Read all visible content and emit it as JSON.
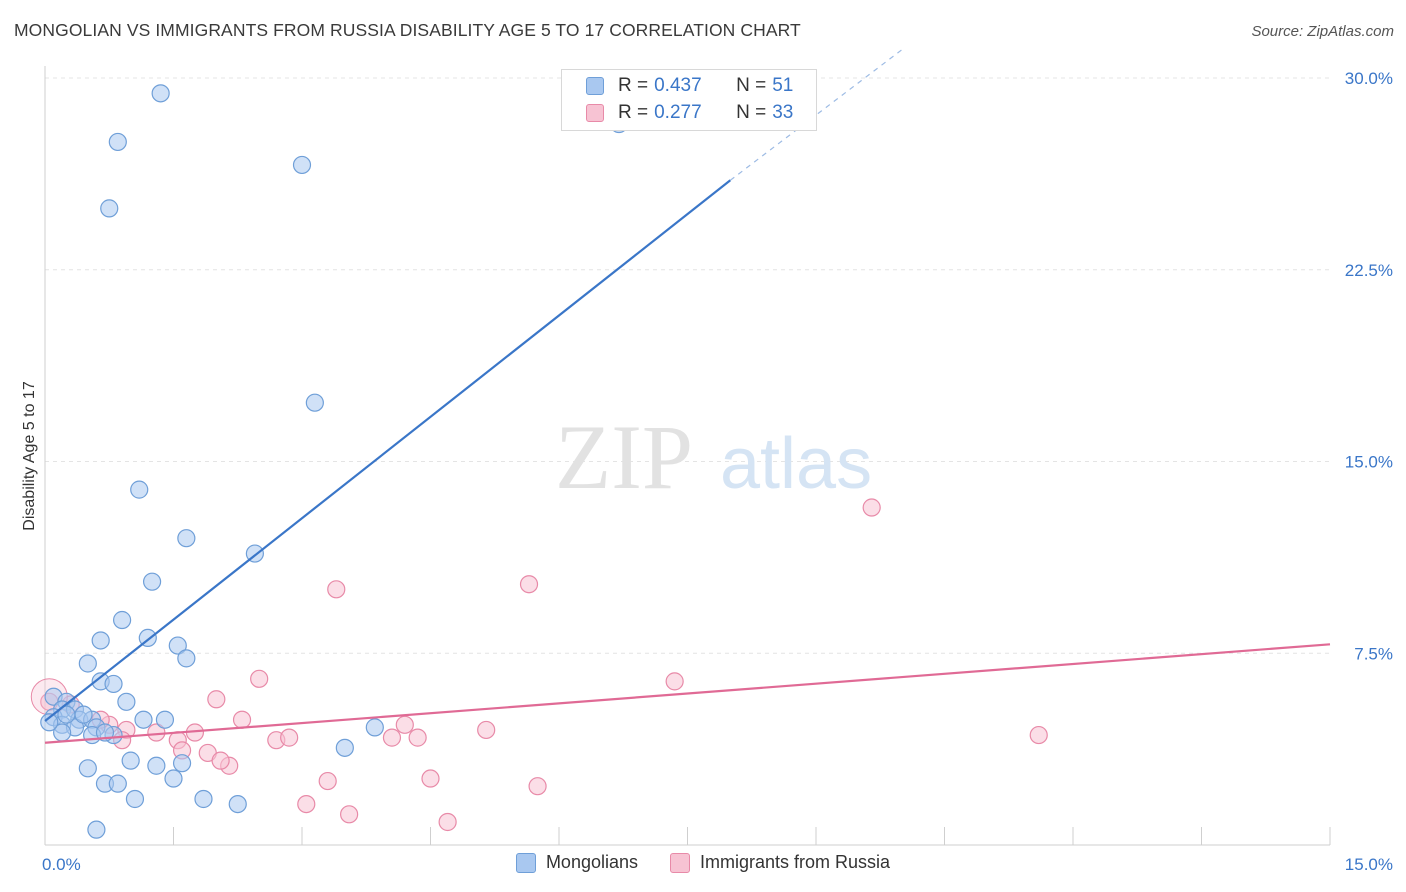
{
  "header": {
    "title": "MONGOLIAN VS IMMIGRANTS FROM RUSSIA DISABILITY AGE 5 TO 17 CORRELATION CHART",
    "source": "Source: ZipAtlas.com"
  },
  "watermark": {
    "zip": "ZIP",
    "atlas": "atlas"
  },
  "legend": {
    "r_label": "R =",
    "n_label": "N =",
    "entries": [
      {
        "r": "0.437",
        "n": "51",
        "color": "#a9c8f0",
        "border": "#6f9fd8"
      },
      {
        "r": "0.277",
        "n": "33",
        "color": "#f7c3d3",
        "border": "#e88aa8"
      }
    ]
  },
  "chart_data": {
    "type": "scatter",
    "title": "MONGOLIAN VS IMMIGRANTS FROM RUSSIA DISABILITY AGE 5 TO 17 CORRELATION CHART",
    "xlabel": "",
    "ylabel": "Disability Age 5 to 17",
    "xlim": [
      0,
      15
    ],
    "ylim": [
      0,
      30
    ],
    "x_tick_labels": [
      "0.0%",
      "15.0%"
    ],
    "y_tick_labels": [
      "7.5%",
      "15.0%",
      "22.5%",
      "30.0%"
    ],
    "y_ticks": [
      7.5,
      15,
      22.5,
      30
    ],
    "grid": true,
    "legend_position": "top-center",
    "series": [
      {
        "name": "Mongolians",
        "color": "#6f9fd8",
        "fill": "#a9c8f0",
        "trend": {
          "x": [
            0.0,
            8.0
          ],
          "y": [
            4.85,
            26.0
          ],
          "dashed_to": [
            10.0,
            31.1
          ]
        },
        "points": [
          [
            1.35,
            29.4
          ],
          [
            0.85,
            27.5
          ],
          [
            3.0,
            26.6
          ],
          [
            0.75,
            24.9
          ],
          [
            6.7,
            28.2
          ],
          [
            3.15,
            17.3
          ],
          [
            1.1,
            13.9
          ],
          [
            1.65,
            12.0
          ],
          [
            2.45,
            11.4
          ],
          [
            1.25,
            10.3
          ],
          [
            0.9,
            8.8
          ],
          [
            1.2,
            8.1
          ],
          [
            0.65,
            8.0
          ],
          [
            1.55,
            7.8
          ],
          [
            1.65,
            7.3
          ],
          [
            0.5,
            7.1
          ],
          [
            0.65,
            6.4
          ],
          [
            0.8,
            6.3
          ],
          [
            0.1,
            5.8
          ],
          [
            0.25,
            5.6
          ],
          [
            0.95,
            5.6
          ],
          [
            0.2,
            5.3
          ],
          [
            0.35,
            5.3
          ],
          [
            0.4,
            4.9
          ],
          [
            0.55,
            4.9
          ],
          [
            0.1,
            5.0
          ],
          [
            0.2,
            4.7
          ],
          [
            0.35,
            4.6
          ],
          [
            0.6,
            4.6
          ],
          [
            0.2,
            4.4
          ],
          [
            0.55,
            4.3
          ],
          [
            0.8,
            4.3
          ],
          [
            0.05,
            4.8
          ],
          [
            1.15,
            4.9
          ],
          [
            1.4,
            4.9
          ],
          [
            0.7,
            4.4
          ],
          [
            3.85,
            4.6
          ],
          [
            3.5,
            3.8
          ],
          [
            1.0,
            3.3
          ],
          [
            0.5,
            3.0
          ],
          [
            1.3,
            3.1
          ],
          [
            1.6,
            3.2
          ],
          [
            0.7,
            2.4
          ],
          [
            0.85,
            2.4
          ],
          [
            1.5,
            2.6
          ],
          [
            1.05,
            1.8
          ],
          [
            1.85,
            1.8
          ],
          [
            2.25,
            1.6
          ],
          [
            0.6,
            0.6
          ],
          [
            0.25,
            5.1
          ],
          [
            0.45,
            5.1
          ]
        ]
      },
      {
        "name": "Immigrants from Russia",
        "color": "#e88aa8",
        "fill": "#f7c3d3",
        "trend": {
          "x": [
            0.0,
            15.0
          ],
          "y": [
            4.0,
            7.85
          ]
        },
        "points": [
          [
            9.65,
            13.2
          ],
          [
            5.65,
            10.2
          ],
          [
            3.4,
            10.0
          ],
          [
            7.35,
            6.4
          ],
          [
            2.5,
            6.5
          ],
          [
            2.0,
            5.7
          ],
          [
            2.3,
            4.9
          ],
          [
            0.3,
            5.5
          ],
          [
            0.75,
            4.7
          ],
          [
            0.95,
            4.5
          ],
          [
            1.3,
            4.4
          ],
          [
            1.75,
            4.4
          ],
          [
            1.55,
            4.1
          ],
          [
            2.7,
            4.1
          ],
          [
            2.85,
            4.2
          ],
          [
            4.05,
            4.2
          ],
          [
            4.2,
            4.7
          ],
          [
            4.35,
            4.2
          ],
          [
            5.15,
            4.5
          ],
          [
            11.6,
            4.3
          ],
          [
            1.9,
            3.6
          ],
          [
            1.6,
            3.7
          ],
          [
            2.15,
            3.1
          ],
          [
            3.3,
            2.5
          ],
          [
            4.5,
            2.6
          ],
          [
            5.75,
            2.3
          ],
          [
            3.05,
            1.6
          ],
          [
            3.55,
            1.2
          ],
          [
            4.7,
            0.9
          ],
          [
            0.9,
            4.1
          ],
          [
            0.05,
            5.6
          ],
          [
            0.65,
            4.9
          ],
          [
            2.05,
            3.3
          ]
        ]
      }
    ]
  }
}
